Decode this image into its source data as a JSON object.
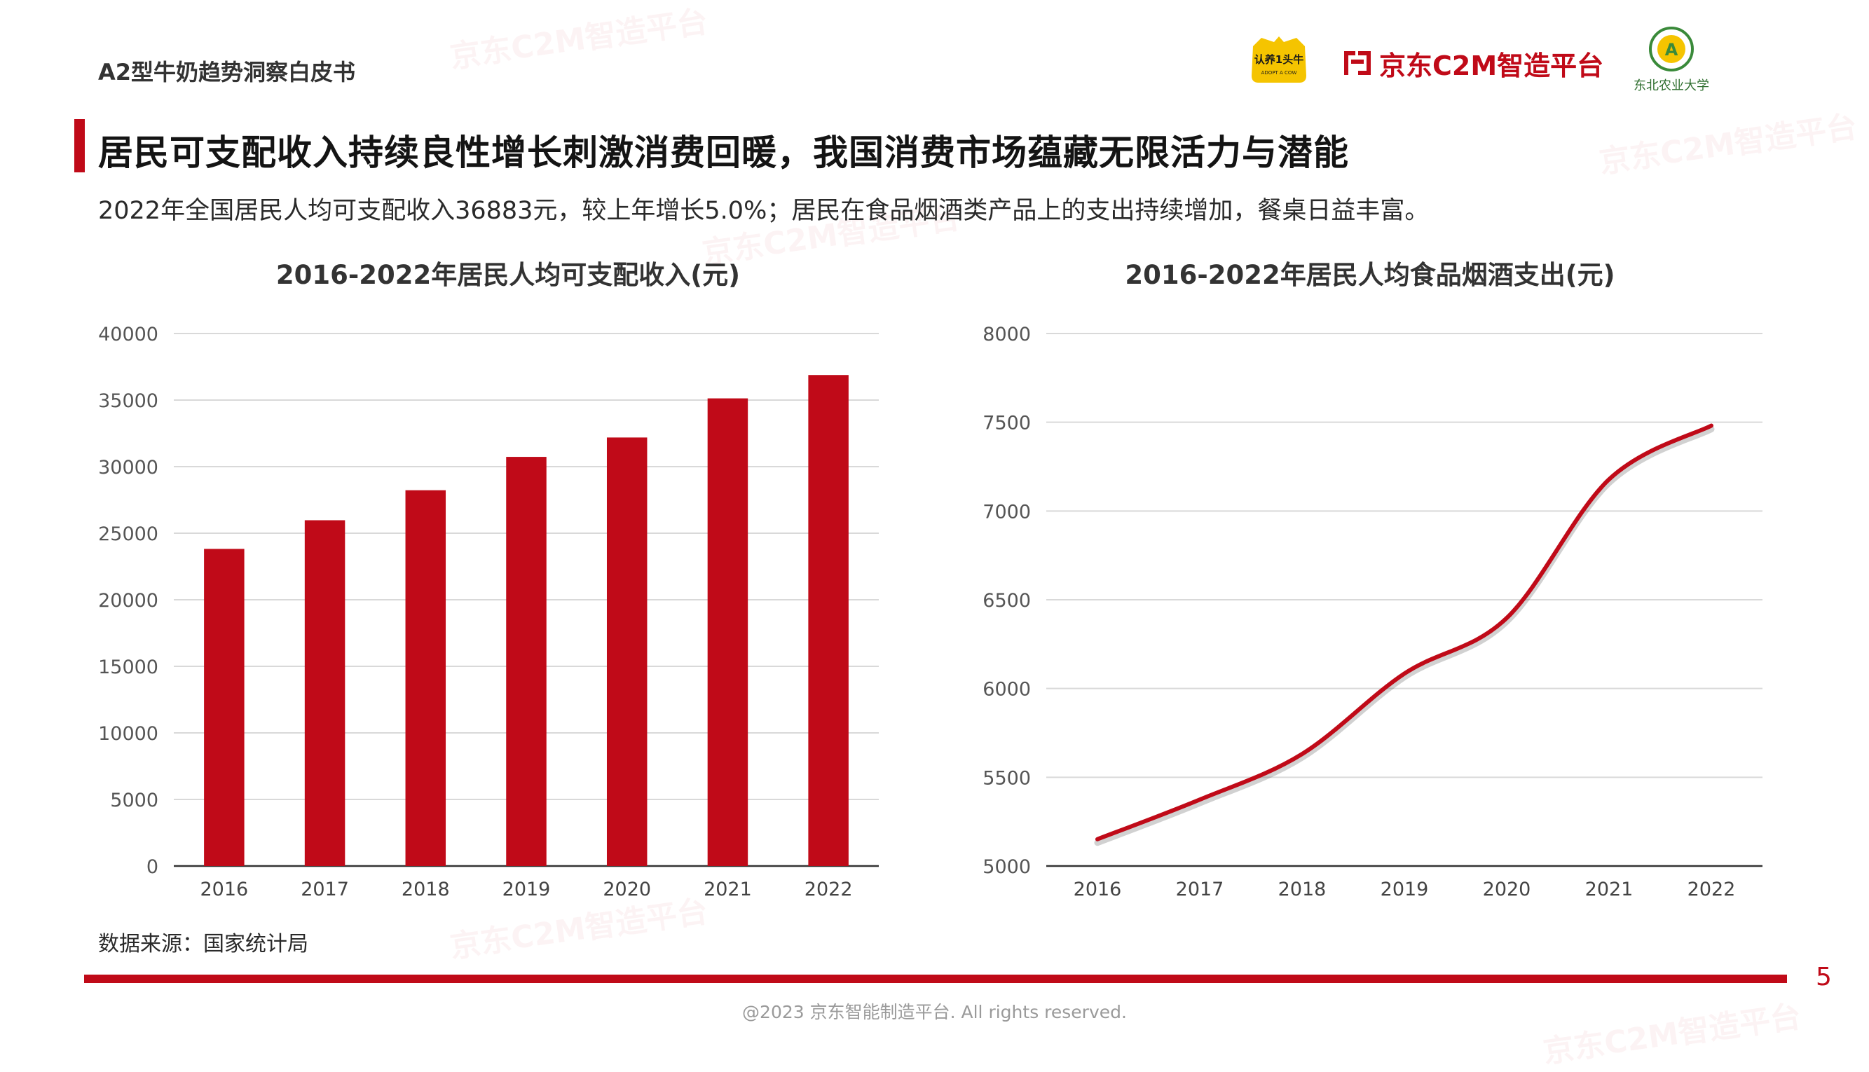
{
  "header": {
    "doc_title": "A2型牛奶趋势洞察白皮书",
    "logos": {
      "cow_text_main": "认养1头牛",
      "cow_text_sub": "ADOPT A COW",
      "jd_text": "京东C2M智造平台",
      "neau_text": "东北农业大学"
    }
  },
  "headline": "居民可支配收入持续良性增长刺激消费回暖，我国消费市场蕴藏无限活力与潜能",
  "subline": "2022年全国居民人均可支配收入36883元，较上年增长5.0%；居民在食品烟酒类产品上的支出持续增加，餐桌日益丰富。",
  "watermark": "京东C2M智造平台",
  "chart_data": [
    {
      "type": "bar",
      "title": "2016-2022年居民人均可支配收入(元)",
      "categories": [
        "2016",
        "2017",
        "2018",
        "2019",
        "2020",
        "2021",
        "2022"
      ],
      "values": [
        23821,
        25974,
        28228,
        30733,
        32189,
        35128,
        36883
      ],
      "ylim": [
        0,
        40000
      ],
      "yticks": [
        "0",
        "5000",
        "10000",
        "15000",
        "20000",
        "25000",
        "30000",
        "35000",
        "40000"
      ],
      "grid": true,
      "color": "#c00a18"
    },
    {
      "type": "line",
      "title": "2016-2022年居民人均食品烟酒支出(元)",
      "categories": [
        "2016",
        "2017",
        "2018",
        "2019",
        "2020",
        "2021",
        "2022"
      ],
      "values": [
        5151,
        5374,
        5631,
        6084,
        6397,
        7178,
        7481
      ],
      "ylim": [
        5000,
        8000
      ],
      "yticks": [
        "5000",
        "5500",
        "6000",
        "6500",
        "7000",
        "7500",
        "8000"
      ],
      "grid": true,
      "color": "#c00a18"
    }
  ],
  "source": "数据来源：国家统计局",
  "footer": {
    "copyright": "@2023 京东智能制造平台. All rights reserved.",
    "page_number": "5"
  }
}
